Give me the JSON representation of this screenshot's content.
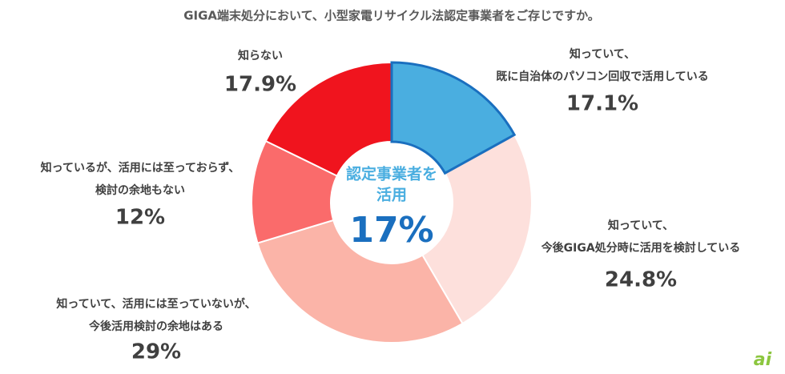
{
  "chart_data": {
    "type": "donut",
    "title": "GIGA端末処分において、小型家電リサイクル法認定事業者をご存じですか。",
    "categories": [
      [
        "知っていて、",
        "既に自治体のパソコン回収で活用している"
      ],
      [
        "知っていて、",
        "今後GIGA処分時に活用を検討している"
      ],
      [
        "知っていて、活用には至っていないが、",
        "今後活用検討の余地はある"
      ],
      [
        "知っているが、活用には至っておらず、",
        "検討の余地もない"
      ],
      [
        "知らない"
      ]
    ],
    "values": [
      17.1,
      24.8,
      29,
      12,
      17.9
    ],
    "value_labels": [
      "17.1%",
      "24.8%",
      "29%",
      "12%",
      "17.9%"
    ],
    "colors": [
      "#4aaee0",
      "#fde0dc",
      "#fbb4a8",
      "#fa6b6b",
      "#f0141e"
    ],
    "edgecolors": [
      "#1a6fbf",
      "#ffffff",
      "#ffffff",
      "#ffffff",
      "#ffffff"
    ],
    "center_text": [
      "認定事業者を",
      "活用"
    ],
    "center_value_label": "17%",
    "watermark": "ai"
  }
}
